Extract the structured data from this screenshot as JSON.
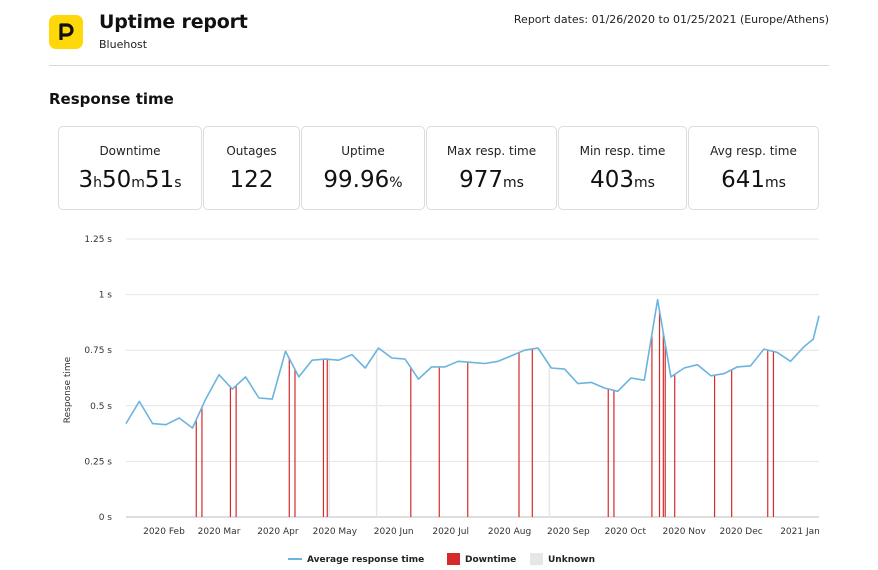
{
  "header": {
    "title": "Uptime report",
    "subtitle": "Bluehost",
    "report_dates": "Report dates: 01/26/2020 to 01/25/2021 (Europe/Athens)",
    "logo_icon": "brand-p-logo-icon",
    "brand_color": "#ffd80a"
  },
  "section": {
    "title": "Response time"
  },
  "stats": {
    "downtime": {
      "label": "Downtime",
      "h": "3",
      "h_unit": "h",
      "m": "50",
      "m_unit": "m",
      "s": "51",
      "s_unit": "s"
    },
    "outages": {
      "label": "Outages",
      "value": "122"
    },
    "uptime": {
      "label": "Uptime",
      "value": "99.96",
      "unit": "%"
    },
    "max_resp": {
      "label": "Max resp. time",
      "value": "977",
      "unit": "ms"
    },
    "min_resp": {
      "label": "Min resp. time",
      "value": "403",
      "unit": "ms"
    },
    "avg_resp": {
      "label": "Avg resp. time",
      "value": "641",
      "unit": "ms"
    }
  },
  "chart_data": {
    "type": "line",
    "ylabel": "Response time",
    "ylim": [
      0,
      1.25
    ],
    "y_ticks": [
      0,
      0.25,
      0.5,
      0.75,
      1,
      1.25
    ],
    "y_tick_labels": [
      "0 s",
      "0.25 s",
      "0.5 s",
      "0.75 s",
      "1 s",
      "1.25 s"
    ],
    "x_range": [
      "2020-01-26",
      "2021-01-25"
    ],
    "x_ticks": [
      "2020-02-15",
      "2020-03-15",
      "2020-04-15",
      "2020-05-15",
      "2020-06-15",
      "2020-07-15",
      "2020-08-15",
      "2020-09-15",
      "2020-10-15",
      "2020-11-15",
      "2020-12-15",
      "2021-01-15"
    ],
    "x_tick_labels": [
      "2020 Feb",
      "2020 Mar",
      "2020 Apr",
      "2020 May",
      "2020 Jun",
      "2020 Jul",
      "2020 Aug",
      "2020 Sep",
      "2020 Oct",
      "2020 Nov",
      "2020 Dec",
      "2021 Jan"
    ],
    "grid": true,
    "legend_position": "bottom",
    "legend": [
      {
        "name": "Average response time",
        "color": "#6cb4e0",
        "kind": "line"
      },
      {
        "name": "Downtime",
        "color": "#d62a2a",
        "kind": "box"
      },
      {
        "name": "Unknown",
        "color": "#e6e6e6",
        "kind": "box"
      }
    ],
    "series": [
      {
        "name": "Average response time",
        "color": "#6cb4e0",
        "points": [
          [
            "2020-01-26",
            0.42
          ],
          [
            "2020-02-02",
            0.52
          ],
          [
            "2020-02-09",
            0.42
          ],
          [
            "2020-02-16",
            0.415
          ],
          [
            "2020-02-23",
            0.445
          ],
          [
            "2020-03-01",
            0.4
          ],
          [
            "2020-03-08",
            0.53
          ],
          [
            "2020-03-15",
            0.64
          ],
          [
            "2020-03-22",
            0.575
          ],
          [
            "2020-03-29",
            0.63
          ],
          [
            "2020-04-05",
            0.535
          ],
          [
            "2020-04-12",
            0.53
          ],
          [
            "2020-04-19",
            0.745
          ],
          [
            "2020-04-26",
            0.63
          ],
          [
            "2020-05-03",
            0.705
          ],
          [
            "2020-05-10",
            0.71
          ],
          [
            "2020-05-17",
            0.705
          ],
          [
            "2020-05-24",
            0.73
          ],
          [
            "2020-05-31",
            0.67
          ],
          [
            "2020-06-07",
            0.76
          ],
          [
            "2020-06-14",
            0.715
          ],
          [
            "2020-06-21",
            0.71
          ],
          [
            "2020-06-28",
            0.62
          ],
          [
            "2020-07-05",
            0.675
          ],
          [
            "2020-07-12",
            0.675
          ],
          [
            "2020-07-19",
            0.7
          ],
          [
            "2020-07-26",
            0.695
          ],
          [
            "2020-08-02",
            0.69
          ],
          [
            "2020-08-09",
            0.7
          ],
          [
            "2020-08-16",
            0.725
          ],
          [
            "2020-08-23",
            0.75
          ],
          [
            "2020-08-30",
            0.76
          ],
          [
            "2020-09-06",
            0.67
          ],
          [
            "2020-09-13",
            0.665
          ],
          [
            "2020-09-20",
            0.6
          ],
          [
            "2020-09-27",
            0.605
          ],
          [
            "2020-10-04",
            0.58
          ],
          [
            "2020-10-11",
            0.565
          ],
          [
            "2020-10-18",
            0.625
          ],
          [
            "2020-10-25",
            0.615
          ],
          [
            "2020-11-01",
            0.977
          ],
          [
            "2020-11-08",
            0.63
          ],
          [
            "2020-11-15",
            0.67
          ],
          [
            "2020-11-22",
            0.685
          ],
          [
            "2020-11-29",
            0.635
          ],
          [
            "2020-12-06",
            0.645
          ],
          [
            "2020-12-13",
            0.675
          ],
          [
            "2020-12-20",
            0.68
          ],
          [
            "2020-12-27",
            0.755
          ],
          [
            "2021-01-03",
            0.74
          ],
          [
            "2021-01-10",
            0.7
          ],
          [
            "2021-01-17",
            0.765
          ],
          [
            "2021-01-22",
            0.8
          ],
          [
            "2021-01-25",
            0.905
          ]
        ]
      }
    ],
    "downtime_dates": [
      "2020-03-03",
      "2020-03-06",
      "2020-03-21",
      "2020-03-24",
      "2020-04-21",
      "2020-04-24",
      "2020-05-09",
      "2020-05-11",
      "2020-06-24",
      "2020-07-09",
      "2020-07-24",
      "2020-08-20",
      "2020-08-27",
      "2020-10-06",
      "2020-10-09",
      "2020-10-29",
      "2020-11-02",
      "2020-11-04",
      "2020-11-05",
      "2020-11-10",
      "2020-12-01",
      "2020-12-10",
      "2020-12-29",
      "2021-01-01"
    ],
    "unknown_dates": [
      "2020-05-12",
      "2020-06-06",
      "2020-09-05"
    ]
  }
}
